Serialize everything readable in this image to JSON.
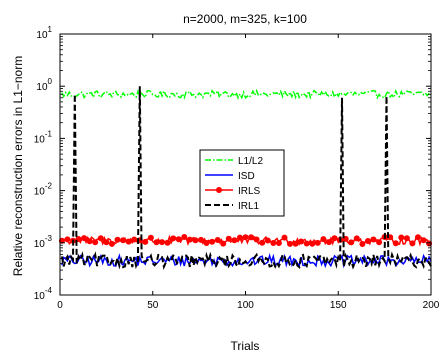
{
  "chart_data": {
    "type": "line",
    "title": "n=2000, m=325, k=100",
    "xlabel": "Trials",
    "ylabel": "Relative reconstruction errors in L1−norm",
    "xlim": [
      0,
      200
    ],
    "ylim_log10": [
      -4,
      1
    ],
    "yscale": "log",
    "xticks": [
      0,
      50,
      100,
      150,
      200
    ],
    "yticks": [
      {
        "base": "10",
        "exp": "-4",
        "value": 0.0001
      },
      {
        "base": "10",
        "exp": "-3",
        "value": 0.001
      },
      {
        "base": "10",
        "exp": "-2",
        "value": 0.01
      },
      {
        "base": "10",
        "exp": "-1",
        "value": 0.1
      },
      {
        "base": "10",
        "exp": "0",
        "value": 1
      },
      {
        "base": "10",
        "exp": "1",
        "value": 10
      }
    ],
    "grid": false,
    "legend_position": "center",
    "series": [
      {
        "name": "L1/L2",
        "color": "#00ff00",
        "style": "dash-dot",
        "marker": "none",
        "base": 0.7,
        "jitter_log10": 0.07,
        "approx_range": [
          0.5,
          0.95
        ]
      },
      {
        "name": "ISD",
        "color": "#0000ff",
        "style": "solid",
        "marker": "none",
        "base": 0.00045,
        "jitter_log10": 0.1,
        "approx_range": [
          0.0003,
          0.0008
        ]
      },
      {
        "name": "IRLS",
        "color": "#ff0000",
        "style": "solid",
        "marker": "dot",
        "base": 0.0011,
        "jitter_log10": 0.07,
        "approx_range": [
          0.0008,
          0.0018
        ]
      },
      {
        "name": "IRL1",
        "color": "#000000",
        "style": "dashed",
        "marker": "none",
        "base": 0.00045,
        "jitter_log10": 0.12,
        "approx_range": [
          0.0003,
          0.0008
        ],
        "spikes": [
          {
            "x": 8,
            "y": 0.7
          },
          {
            "x": 43,
            "y": 1.0
          },
          {
            "x": 152,
            "y": 0.6
          },
          {
            "x": 176,
            "y": 0.65
          }
        ]
      }
    ]
  }
}
